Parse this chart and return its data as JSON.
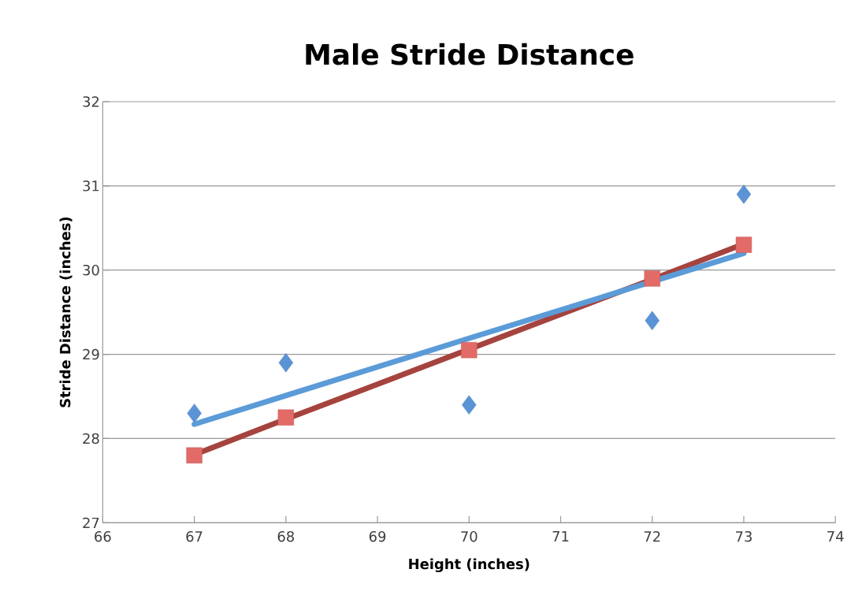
{
  "chart_data": {
    "type": "scatter",
    "title": "Male Stride Distance",
    "xlabel": "Height (inches)",
    "ylabel": "Stride Distance (inches)",
    "x": [
      67,
      68,
      70,
      72,
      73
    ],
    "series": [
      {
        "marker": "diamond",
        "color": "#5b94d6",
        "values": [
          28.3,
          28.9,
          28.4,
          29.4,
          30.9
        ]
      },
      {
        "marker": "square",
        "color": "#e26b67",
        "values": [
          27.8,
          28.25,
          29.05,
          29.9,
          30.3
        ]
      },
      {
        "type": "line",
        "marker": "none",
        "color": "#a5433e",
        "values": [
          27.81,
          28.23,
          29.06,
          29.89,
          30.31
        ]
      },
      {
        "type": "line",
        "marker": "none",
        "color": "#5b9bd8",
        "values": [
          28.17,
          28.51,
          29.19,
          null,
          30.2
        ]
      }
    ],
    "xlim": [
      66,
      74
    ],
    "xticks": [
      66,
      67,
      68,
      69,
      70,
      71,
      72,
      73,
      74
    ],
    "ylim": [
      27,
      32
    ],
    "yticks": [
      27,
      28,
      29,
      30,
      31,
      32
    ],
    "grid": "y"
  }
}
